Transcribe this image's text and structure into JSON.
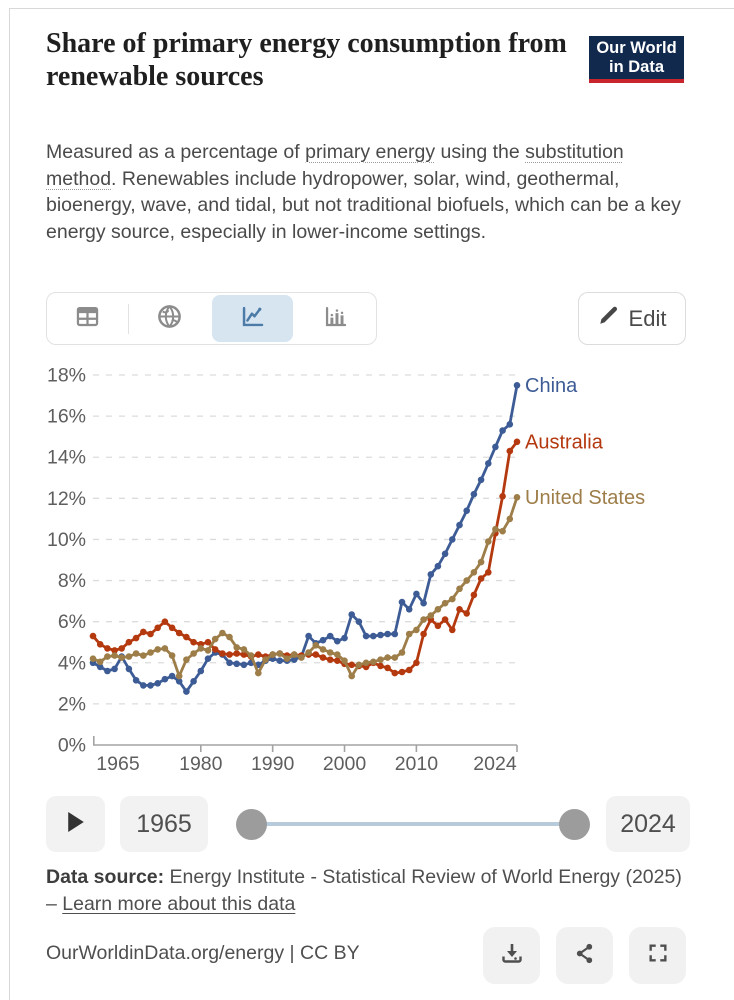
{
  "header": {
    "title": "Share of primary energy consumption from renewable sources",
    "logo_line1": "Our World",
    "logo_line2": "in Data",
    "logo_bg_color": "#12294e",
    "logo_accent_color": "#c9252d"
  },
  "subtitle": {
    "segments": [
      {
        "text": "Measured as a percentage of ",
        "underline": false
      },
      {
        "text": "primary energy",
        "underline": true
      },
      {
        "text": " using the ",
        "underline": false
      },
      {
        "text": "substitution method",
        "underline": true
      },
      {
        "text": ". Renewables include hydropower, solar, wind, geothermal, bioenergy, wave, and tidal, but not traditional biofuels, which can be a key energy source, especially in lower-income settings.",
        "underline": false
      }
    ]
  },
  "toolbar": {
    "views": [
      "table",
      "map",
      "line-chart",
      "bar-chart"
    ],
    "active_view": "line-chart",
    "active_view_bg": "#d7e5f1",
    "active_icon_color": "#4d7ba8",
    "inactive_icon_color": "#8c8c8c",
    "edit_label": "Edit"
  },
  "chart_data": {
    "type": "line",
    "title": "Share of primary energy consumption from renewable sources",
    "unit": "%",
    "ylim": [
      0,
      18
    ],
    "ytick_step": 2,
    "grid": "dashed-horizontal",
    "legend_position": "end-of-line-labels",
    "x_start": 1965,
    "x_end": 2024,
    "x_ticks": [
      1965,
      1980,
      1990,
      2000,
      2010,
      2024
    ],
    "series": [
      {
        "name": "China",
        "color": "#3d5c96",
        "values": [
          4.0,
          3.8,
          3.6,
          3.7,
          4.3,
          3.7,
          3.15,
          2.9,
          2.9,
          3.0,
          3.2,
          3.35,
          3.1,
          2.6,
          3.1,
          3.6,
          4.2,
          4.5,
          4.4,
          4.0,
          3.95,
          3.9,
          4.0,
          3.9,
          4.1,
          4.2,
          4.1,
          4.1,
          4.15,
          4.3,
          5.3,
          4.95,
          5.1,
          5.3,
          5.05,
          5.2,
          6.35,
          6.0,
          5.3,
          5.3,
          5.35,
          5.4,
          5.4,
          6.95,
          6.6,
          7.35,
          6.9,
          8.3,
          8.7,
          9.3,
          10.0,
          10.7,
          11.4,
          12.2,
          12.9,
          13.7,
          14.5,
          15.3,
          15.6,
          17.5
        ]
      },
      {
        "name": "Australia",
        "color": "#b5390f",
        "values": [
          5.3,
          4.9,
          4.7,
          4.6,
          4.7,
          5.0,
          5.2,
          5.5,
          5.4,
          5.7,
          6.0,
          5.7,
          5.45,
          5.25,
          5.0,
          4.9,
          5.0,
          4.65,
          4.45,
          4.4,
          4.45,
          4.4,
          4.3,
          4.4,
          4.3,
          4.4,
          4.45,
          4.35,
          4.4,
          4.35,
          4.4,
          4.4,
          4.25,
          4.15,
          4.1,
          3.95,
          3.9,
          3.85,
          3.8,
          4.0,
          3.85,
          3.75,
          3.5,
          3.55,
          3.65,
          4.0,
          5.4,
          6.1,
          5.8,
          6.1,
          5.6,
          6.6,
          6.4,
          7.3,
          8.1,
          8.4,
          10.3,
          12.1,
          14.3,
          14.75
        ]
      },
      {
        "name": "United States",
        "color": "#9d7d48",
        "values": [
          4.2,
          4.05,
          4.3,
          4.35,
          4.25,
          4.3,
          4.45,
          4.35,
          4.5,
          4.65,
          4.7,
          4.35,
          3.35,
          4.15,
          4.45,
          4.7,
          4.6,
          5.15,
          5.45,
          5.25,
          4.75,
          4.65,
          4.35,
          3.5,
          4.15,
          4.4,
          4.45,
          4.2,
          4.4,
          4.25,
          4.5,
          4.85,
          4.65,
          4.5,
          4.4,
          4.1,
          3.35,
          3.9,
          4.0,
          4.05,
          4.15,
          4.25,
          4.25,
          4.5,
          5.4,
          5.6,
          6.1,
          6.3,
          6.6,
          6.9,
          7.1,
          7.6,
          8.0,
          8.4,
          8.9,
          9.9,
          10.5,
          10.4,
          11.0,
          12.05
        ]
      }
    ]
  },
  "timeline": {
    "start_year": "1965",
    "end_year": "2024"
  },
  "footer": {
    "source_prefix": "Data source:",
    "source_text": " Energy Institute - Statistical Review of World Energy (2025) – ",
    "source_link": "Learn more about this data",
    "cite": "OurWorldinData.org/energy | CC BY",
    "actions": [
      "download",
      "share",
      "fullscreen"
    ]
  }
}
